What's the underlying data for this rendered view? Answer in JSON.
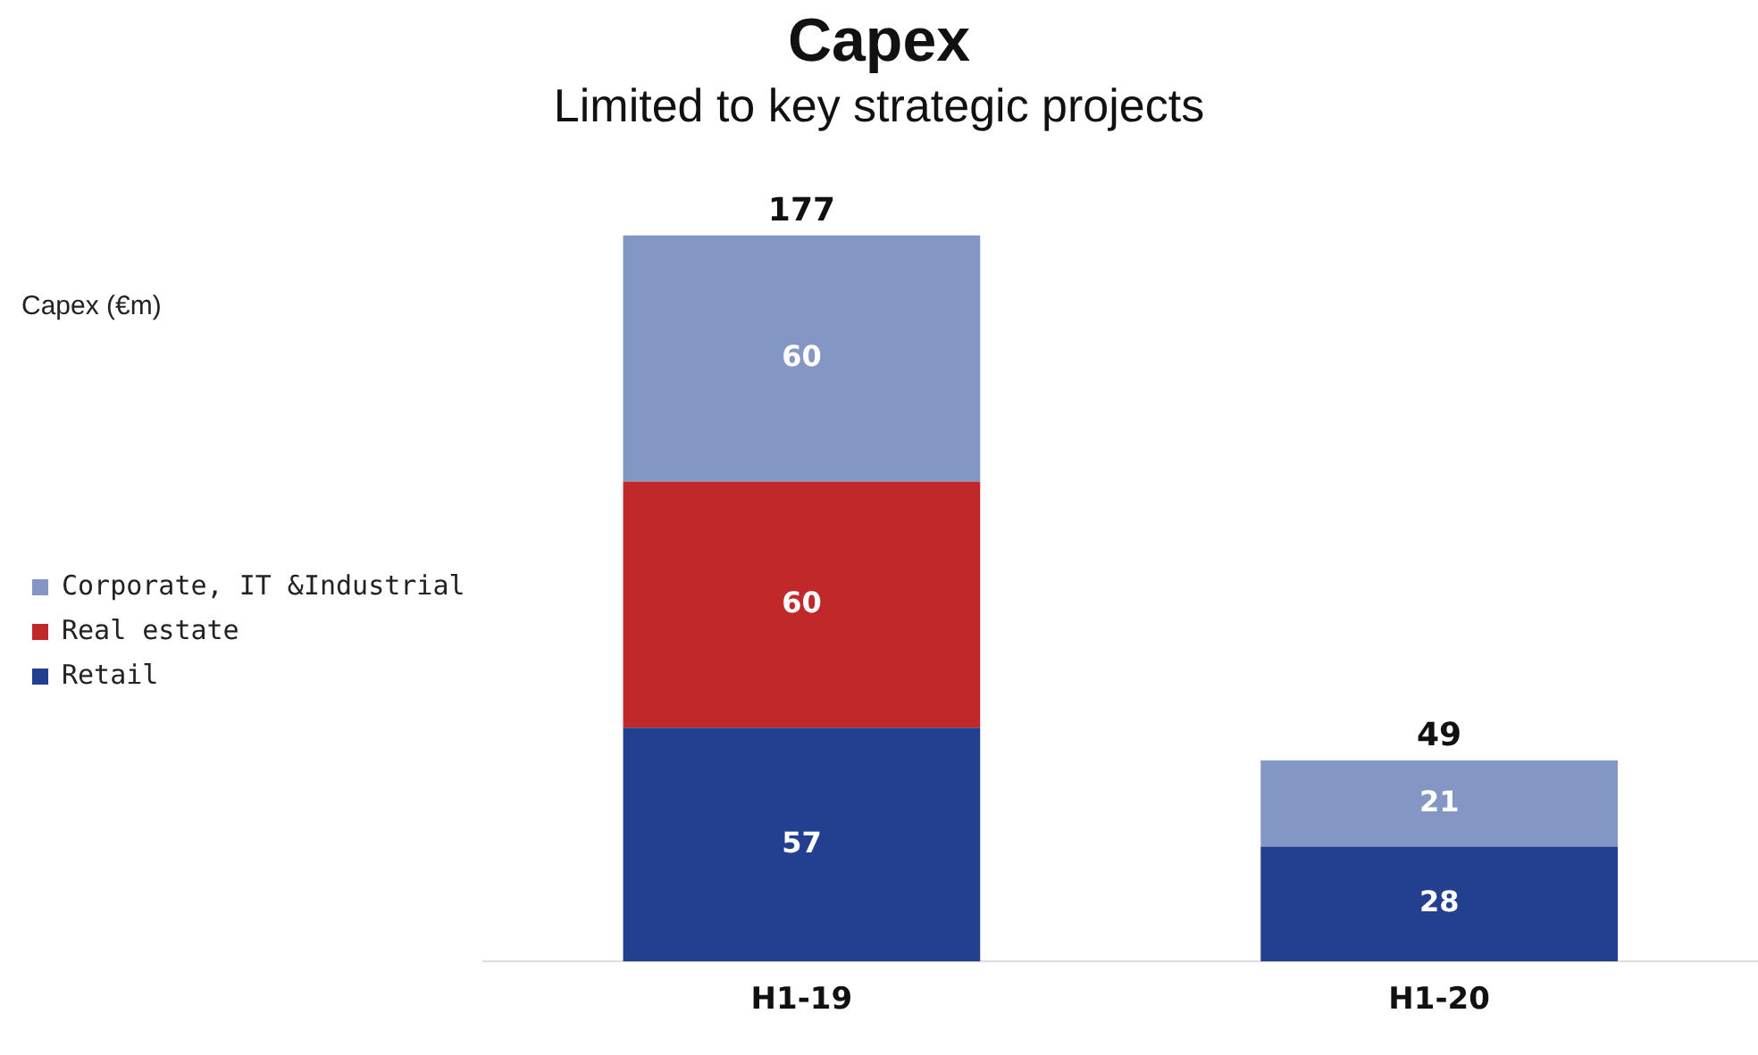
{
  "chart_data": {
    "type": "bar",
    "title": "Capex",
    "subtitle": "Limited to key strategic projects",
    "annotations": [
      "Capex (€m)"
    ],
    "categories": [
      "H1-19",
      "H1-20"
    ],
    "series": [
      {
        "name": "Retail",
        "color": "#233f8f",
        "values": [
          57,
          28
        ]
      },
      {
        "name": "Real estate",
        "color": "#c0282a",
        "values": [
          60,
          null
        ]
      },
      {
        "name": "Corporate, IT &Industrial",
        "color": "#8496c4",
        "values": [
          60,
          21
        ]
      }
    ],
    "stacked": true,
    "data_labels": true,
    "totals": [
      "177",
      "49"
    ],
    "legend": "left",
    "grid": false,
    "tick_labels": "x"
  }
}
